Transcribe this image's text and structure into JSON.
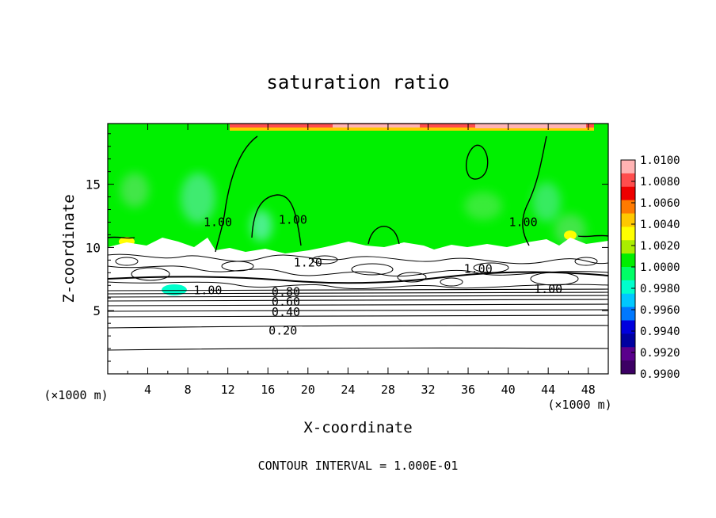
{
  "chart_data": {
    "type": "heatmap",
    "title": "saturation ratio",
    "xlabel": "X-coordinate",
    "ylabel": "Z-coordinate",
    "x_unit": "(×1000 m)",
    "x_unit_right": "(×1000 m)",
    "xlim": [
      0,
      50
    ],
    "ylim": [
      0,
      19.8
    ],
    "x_ticks": [
      4,
      8,
      12,
      16,
      20,
      24,
      28,
      32,
      36,
      40,
      44,
      48
    ],
    "y_ticks": [
      5,
      10,
      15
    ],
    "footer": "CONTOUR INTERVAL = 1.000E-01",
    "colorbar": {
      "min": 0.99,
      "max": 1.01,
      "labels": [
        "1.0100",
        "1.0080",
        "1.0060",
        "1.0040",
        "1.0020",
        "1.0000",
        "0.9980",
        "0.9960",
        "0.9940",
        "0.9920",
        "0.9900"
      ],
      "colors": [
        "#ffb3b3",
        "#ff4d4d",
        "#ee0000",
        "#ff7a00",
        "#ffc800",
        "#ffff00",
        "#aaee00",
        "#00ee00",
        "#00ff66",
        "#00ffcc",
        "#00c8ff",
        "#0078ff",
        "#0000dd",
        "#0000a0",
        "#5a008c",
        "#3c0064"
      ]
    },
    "contour_labels": [
      {
        "text": "0.20",
        "x": 17.5,
        "y": 3.4
      },
      {
        "text": "0.40",
        "x": 17.8,
        "y": 4.9
      },
      {
        "text": "0.60",
        "x": 17.8,
        "y": 5.7
      },
      {
        "text": "0.80",
        "x": 17.8,
        "y": 6.5
      },
      {
        "text": "1.00",
        "x": 10.0,
        "y": 6.6
      },
      {
        "text": "1.00",
        "x": 37.0,
        "y": 8.3
      },
      {
        "text": "1.00",
        "x": 44.0,
        "y": 6.7
      },
      {
        "text": "1.20",
        "x": 20.0,
        "y": 8.8
      },
      {
        "text": "1.00",
        "x": 11.0,
        "y": 12.0
      },
      {
        "text": "1.00",
        "x": 18.5,
        "y": 12.2
      },
      {
        "text": "1.00",
        "x": 41.5,
        "y": 12.0
      }
    ],
    "grid": false
  }
}
